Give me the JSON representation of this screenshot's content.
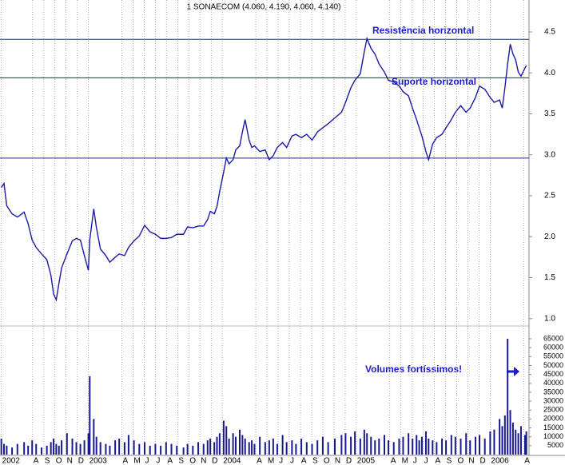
{
  "chart_data": {
    "type": "line",
    "title": "1 SONAECOM (4.060, 4.190, 4.060, 4.140)",
    "annotations": [
      "Resistência horizontal",
      "Suporte horizontal",
      "Volumes fortíssimos!"
    ],
    "hlines": [
      4.41,
      3.94,
      2.96
    ],
    "hline_color": "#1a1ad0",
    "grid": true,
    "xlim": [
      2002.34,
      2006.29
    ],
    "xticks": [
      {
        "value": 2002.35,
        "label": "2002"
      },
      {
        "value": 2002.583,
        "label": "A"
      },
      {
        "value": 2002.667,
        "label": "S"
      },
      {
        "value": 2002.75,
        "label": "O"
      },
      {
        "value": 2002.833,
        "label": "N"
      },
      {
        "value": 2002.917,
        "label": "D"
      },
      2003,
      {
        "value": 2003.25,
        "label": "A"
      },
      {
        "value": 2003.333,
        "label": "M"
      },
      {
        "value": 2003.417,
        "label": "J"
      },
      {
        "value": 2003.5,
        "label": "J"
      },
      {
        "value": 2003.583,
        "label": "A"
      },
      {
        "value": 2003.667,
        "label": "S"
      },
      {
        "value": 2003.75,
        "label": "O"
      },
      {
        "value": 2003.833,
        "label": "N"
      },
      {
        "value": 2003.917,
        "label": "D"
      },
      2004,
      {
        "value": 2004.25,
        "label": "A"
      },
      {
        "value": 2004.333,
        "label": "M"
      },
      {
        "value": 2004.417,
        "label": "J"
      },
      {
        "value": 2004.5,
        "label": "J"
      },
      {
        "value": 2004.583,
        "label": "A"
      },
      {
        "value": 2004.667,
        "label": "S"
      },
      {
        "value": 2004.75,
        "label": "O"
      },
      {
        "value": 2004.833,
        "label": "N"
      },
      {
        "value": 2004.917,
        "label": "D"
      },
      2005,
      {
        "value": 2005.25,
        "label": "A"
      },
      {
        "value": 2005.333,
        "label": "M"
      },
      {
        "value": 2005.417,
        "label": "J"
      },
      {
        "value": 2005.5,
        "label": "J"
      },
      {
        "value": 2005.583,
        "label": "A"
      },
      {
        "value": 2005.667,
        "label": "S"
      },
      {
        "value": 2005.75,
        "label": "O"
      },
      {
        "value": 2005.833,
        "label": "N"
      },
      {
        "value": 2005.917,
        "label": "D"
      },
      2006,
      {
        "value": 2006.25,
        "label": "A"
      }
    ],
    "ylim": [
      0.94,
      4.89
    ],
    "yticks": [
      {
        "value": 1,
        "label": "1.0"
      },
      1.5,
      {
        "value": 2,
        "label": "2.0"
      },
      2.5,
      {
        "value": 3,
        "label": "3.0"
      },
      3.5,
      {
        "value": 4,
        "label": "4.0"
      },
      4.5
    ],
    "y2lim": [
      0,
      73500
    ],
    "y2ticks": [
      5000,
      10000,
      15000,
      20000,
      25000,
      30000,
      35000,
      40000,
      45000,
      50000,
      55000,
      60000,
      65000
    ],
    "x": [
      2002.35,
      2002.37,
      2002.39,
      2002.43,
      2002.47,
      2002.52,
      2002.55,
      2002.58,
      2002.61,
      2002.65,
      2002.69,
      2002.72,
      2002.74,
      2002.76,
      2002.78,
      2002.8,
      2002.84,
      2002.88,
      2002.91,
      2002.94,
      2002.97,
      2003.0,
      2003.01,
      2003.04,
      2003.06,
      2003.09,
      2003.13,
      2003.16,
      2003.2,
      2003.23,
      2003.27,
      2003.3,
      2003.34,
      2003.38,
      2003.42,
      2003.46,
      2003.5,
      2003.54,
      2003.58,
      2003.62,
      2003.66,
      2003.71,
      2003.74,
      2003.78,
      2003.82,
      2003.86,
      2003.89,
      2003.91,
      2003.94,
      2003.96,
      2003.98,
      2004.01,
      2004.03,
      2004.05,
      2004.08,
      2004.1,
      2004.13,
      2004.15,
      2004.17,
      2004.2,
      2004.22,
      2004.24,
      2004.28,
      2004.32,
      2004.35,
      2004.38,
      2004.41,
      2004.45,
      2004.48,
      2004.52,
      2004.55,
      2004.59,
      2004.63,
      2004.67,
      2004.71,
      2004.75,
      2004.79,
      2004.84,
      2004.89,
      2004.92,
      2004.96,
      2004.99,
      2005.03,
      2005.06,
      2005.08,
      2005.11,
      2005.14,
      2005.17,
      2005.21,
      2005.24,
      2005.28,
      2005.32,
      2005.35,
      2005.39,
      2005.42,
      2005.45,
      2005.47,
      2005.49,
      2005.52,
      2005.54,
      2005.57,
      2005.6,
      2005.64,
      2005.67,
      2005.71,
      2005.74,
      2005.78,
      2005.82,
      2005.85,
      2005.89,
      2005.92,
      2005.96,
      2006.0,
      2006.03,
      2006.07,
      2006.09,
      2006.11,
      2006.13,
      2006.15,
      2006.17,
      2006.19,
      2006.21,
      2006.23,
      2006.26,
      2006.27
    ],
    "series": [
      {
        "name": "SONAECOM",
        "color": "#1a1aa8",
        "values": [
          2.6,
          2.65,
          2.38,
          2.28,
          2.24,
          2.3,
          2.16,
          1.96,
          1.87,
          1.79,
          1.72,
          1.53,
          1.3,
          1.23,
          1.43,
          1.62,
          1.79,
          1.95,
          1.98,
          1.96,
          1.77,
          1.59,
          1.96,
          2.34,
          2.11,
          1.85,
          1.77,
          1.69,
          1.75,
          1.79,
          1.77,
          1.87,
          1.95,
          2.01,
          2.14,
          2.06,
          2.03,
          1.98,
          1.98,
          1.99,
          2.03,
          2.03,
          2.12,
          2.11,
          2.13,
          2.13,
          2.21,
          2.31,
          2.28,
          2.37,
          2.55,
          2.79,
          2.96,
          2.89,
          2.94,
          3.06,
          3.11,
          3.28,
          3.43,
          3.18,
          3.09,
          3.11,
          3.04,
          3.06,
          2.94,
          2.99,
          3.09,
          3.15,
          3.09,
          3.23,
          3.25,
          3.21,
          3.25,
          3.18,
          3.28,
          3.33,
          3.38,
          3.45,
          3.52,
          3.64,
          3.82,
          3.91,
          3.99,
          4.26,
          4.42,
          4.3,
          4.23,
          4.11,
          4.01,
          3.91,
          3.89,
          3.84,
          3.77,
          3.72,
          3.57,
          3.43,
          3.33,
          3.23,
          3.04,
          2.94,
          3.13,
          3.21,
          3.25,
          3.33,
          3.43,
          3.52,
          3.6,
          3.52,
          3.57,
          3.7,
          3.84,
          3.8,
          3.7,
          3.64,
          3.67,
          3.57,
          3.82,
          4.11,
          4.35,
          4.23,
          4.16,
          4.01,
          3.96,
          4.06,
          4.09
        ]
      },
      {
        "name": "Volume",
        "color": "#1a1a90",
        "axis": "y2",
        "values": [
          9000,
          6000,
          5000,
          4000,
          6000,
          7000,
          5000,
          8000,
          6000,
          4000,
          5000,
          7000,
          9000,
          6000,
          5000,
          8000,
          12000,
          9000,
          7000,
          6000,
          8000,
          12000,
          44000,
          20000,
          10000,
          7000,
          6000,
          5000,
          8000,
          9000,
          7000,
          11000,
          8000,
          6000,
          7000,
          5000,
          6000,
          5000,
          7000,
          6000,
          5000,
          4000,
          6000,
          5000,
          7000,
          6000,
          8000,
          9000,
          7000,
          10000,
          12000,
          19000,
          16000,
          9000,
          12000,
          10000,
          14000,
          11000,
          9000,
          7000,
          8000,
          6000,
          10000,
          7000,
          8000,
          9000,
          6000,
          11000,
          7000,
          8000,
          6000,
          9000,
          7000,
          6000,
          8000,
          10000,
          7000,
          9000,
          11000,
          12000,
          10000,
          13000,
          9000,
          14000,
          12000,
          10000,
          8000,
          9000,
          11000,
          8000,
          7000,
          9000,
          10000,
          12000,
          9000,
          11000,
          8000,
          10000,
          13000,
          9000,
          8000,
          7000,
          9000,
          8000,
          11000,
          10000,
          9000,
          12000,
          8000,
          10000,
          11000,
          9000,
          13000,
          14000,
          20000,
          16000,
          22000,
          65000,
          25000,
          18000,
          14000,
          12000,
          16000,
          11000,
          13000
        ]
      }
    ]
  }
}
